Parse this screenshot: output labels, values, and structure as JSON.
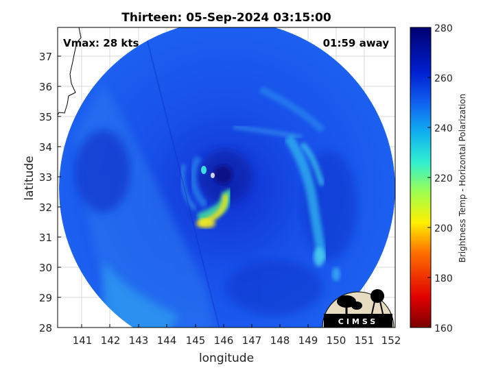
{
  "title": "Thirteen: 05-Sep-2024 03:15:00",
  "vmax_label": "Vmax: 28 kts",
  "time_label": "01:59 away",
  "xlabel": "longitude",
  "ylabel": "latitude",
  "x_ticks": [
    "141",
    "142",
    "143",
    "144",
    "145",
    "146",
    "147",
    "148",
    "149",
    "150",
    "151",
    "152"
  ],
  "y_ticks": [
    "37",
    "36",
    "35",
    "34",
    "33",
    "32",
    "31",
    "30",
    "29",
    "28"
  ],
  "colorbar": {
    "label": "Brightness Temp - Horizontal Polarization",
    "ticks": [
      "280",
      "260",
      "240",
      "220",
      "200",
      "180",
      "160"
    ],
    "range": [
      160,
      280
    ]
  },
  "logo_text": "CIMSS",
  "colors": {
    "background_swath": "#1848e8",
    "cold_core": "#e8e020",
    "cyan_bands": "#30c0f0",
    "dark_center": "#0a1080"
  }
}
